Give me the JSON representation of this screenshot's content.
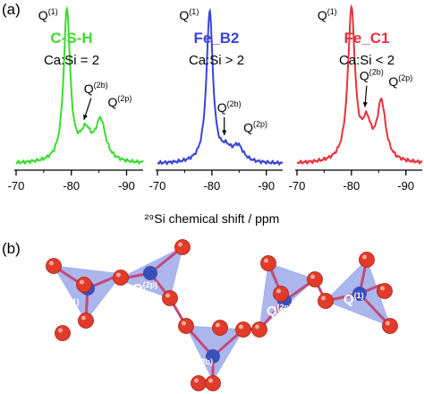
{
  "panel_a_label": "(a)",
  "panel_b_label": "(b)",
  "shared_xlabel": "²⁹Si chemical shift / ppm",
  "chart_data": [
    {
      "type": "line",
      "title": "C-S-H",
      "subtitle": "Ca:Si = 2",
      "color": "#3ddc2e",
      "xlim": [
        -70,
        -93
      ],
      "xticks": [
        -70,
        -80,
        -90
      ],
      "tick_labels": [
        "-70",
        "-80",
        "-90"
      ],
      "peaks": [
        {
          "x": -79.2,
          "height": 1.0,
          "width": 0.9
        },
        {
          "x": -82.6,
          "height": 0.18,
          "width": 1.6
        },
        {
          "x": -85.3,
          "height": 0.26,
          "width": 1.4
        }
      ],
      "annotations": [
        {
          "base": "Q",
          "sup": "(1)",
          "x": -79.2
        },
        {
          "base": "Q",
          "sup": "(2b)",
          "x": -82.6
        },
        {
          "base": "Q",
          "sup": "(2p)",
          "x": -85.3
        }
      ]
    },
    {
      "type": "line",
      "title": "Fe_B2",
      "subtitle": "Ca:Si > 2",
      "color": "#3a44d8",
      "xlim": [
        -70,
        -93
      ],
      "xticks": [
        -70,
        -80,
        -90
      ],
      "tick_labels": [
        "-70",
        "-80",
        "-90"
      ],
      "peaks": [
        {
          "x": -79.6,
          "height": 1.0,
          "width": 0.9
        },
        {
          "x": -82.6,
          "height": 0.07,
          "width": 1.4
        },
        {
          "x": -84.8,
          "height": 0.1,
          "width": 1.5
        }
      ],
      "annotations": [
        {
          "base": "Q",
          "sup": "(1)",
          "x": -79.6
        },
        {
          "base": "Q",
          "sup": "(2b)",
          "x": -82.6
        },
        {
          "base": "Q",
          "sup": "(2p)",
          "x": -84.8
        }
      ]
    },
    {
      "type": "line",
      "title": "Fe_C1",
      "subtitle": "Ca:Si < 2",
      "color": "#e8323c",
      "xlim": [
        -70,
        -93
      ],
      "xticks": [
        -70,
        -80,
        -90
      ],
      "tick_labels": [
        "-70",
        "-80",
        "-90"
      ],
      "peaks": [
        {
          "x": -80.0,
          "height": 1.0,
          "width": 1.0
        },
        {
          "x": -82.8,
          "height": 0.22,
          "width": 1.3
        },
        {
          "x": -85.5,
          "height": 0.38,
          "width": 1.2
        }
      ],
      "annotations": [
        {
          "base": "Q",
          "sup": "(1)",
          "x": -80.0
        },
        {
          "base": "Q",
          "sup": "(2b)",
          "x": -82.8
        },
        {
          "base": "Q",
          "sup": "(2p)",
          "x": -85.5
        }
      ]
    }
  ],
  "panel_b": {
    "site_labels": [
      {
        "base": "Q",
        "sup": "(1)"
      },
      {
        "base": "Q",
        "sup": "(2p)"
      },
      {
        "base": "Q",
        "sup": "(2b)"
      },
      {
        "base": "Q",
        "sup": "(2p)"
      },
      {
        "base": "Q",
        "sup": "(1)"
      }
    ],
    "oxygen_color": "#e23b2a",
    "silicon_color": "#3b4fb8",
    "tetrahedron_color": "#8f9ee6"
  }
}
